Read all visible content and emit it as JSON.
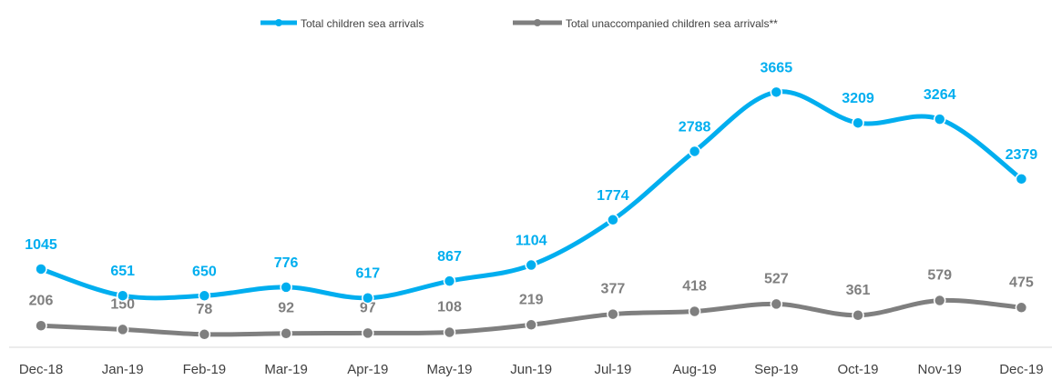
{
  "chart_data": {
    "type": "line",
    "categories": [
      "Dec-18",
      "Jan-19",
      "Feb-19",
      "Mar-19",
      "Apr-19",
      "May-19",
      "Jun-19",
      "Jul-19",
      "Aug-19",
      "Sep-19",
      "Oct-19",
      "Nov-19",
      "Dec-19"
    ],
    "series": [
      {
        "name": "Total children sea arrivals",
        "color": "#00aeef",
        "values": [
          1045,
          651,
          650,
          776,
          617,
          867,
          1104,
          1774,
          2788,
          3665,
          3209,
          3264,
          2379
        ]
      },
      {
        "name": "Total unaccompanied children sea arrivals**",
        "color": "#7f7f7f",
        "values": [
          206,
          150,
          78,
          92,
          97,
          108,
          219,
          377,
          418,
          527,
          361,
          579,
          475
        ]
      }
    ],
    "legend_position": "top",
    "grid": false,
    "ylim": [
      -100,
      3750
    ]
  }
}
